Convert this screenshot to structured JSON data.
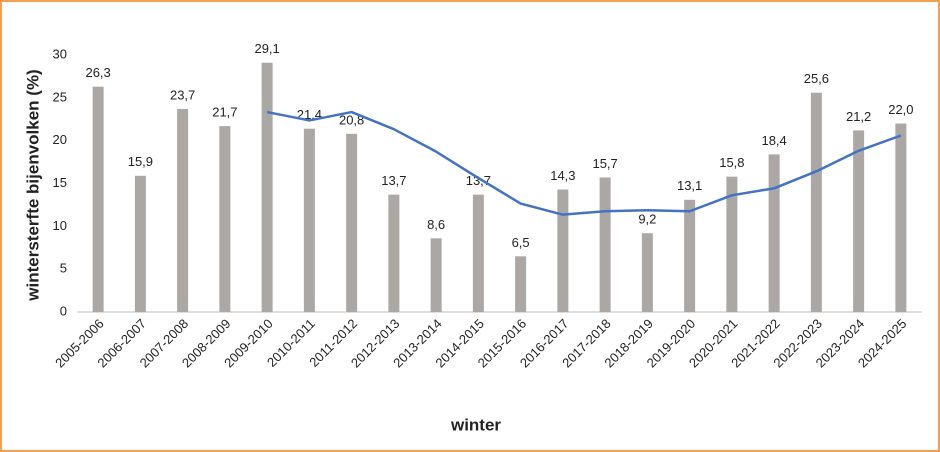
{
  "chart_data": {
    "type": "bar",
    "x_label": "winter",
    "y_label": "wintersterfte bijenvolken (%)",
    "categories": [
      "2005-2006",
      "2006-2007",
      "2007-2008",
      "2008-2009",
      "2009-2010",
      "2010-2011",
      "2011-2012",
      "2012-2013",
      "2013-2014",
      "2014-2015",
      "2015-2016",
      "2016-2017",
      "2017-2018",
      "2018-2019",
      "2019-2020",
      "2020-2021",
      "2021-2022",
      "2022-2023",
      "2023-2024",
      "2024-2025"
    ],
    "series": [
      {
        "type": "bar",
        "color": "#aba7a5",
        "values": [
          26.3,
          15.9,
          23.7,
          21.7,
          29.1,
          21.4,
          20.8,
          13.7,
          8.6,
          13.7,
          6.5,
          14.3,
          15.7,
          9.2,
          13.1,
          15.8,
          18.4,
          25.6,
          21.2,
          22.0
        ],
        "value_labels": [
          "26,3",
          "15,9",
          "23,7",
          "21,7",
          "29,1",
          "21,4",
          "20,8",
          "13,7",
          "8,6",
          "13,7",
          "6,5",
          "14,3",
          "15,7",
          "9,2",
          "13,1",
          "15,8",
          "18,4",
          "25,6",
          "21,2",
          "22,0"
        ]
      },
      {
        "type": "line",
        "color": "#4472c4",
        "values": [
          null,
          null,
          null,
          null,
          23.34,
          22.36,
          23.34,
          21.34,
          18.72,
          15.64,
          12.66,
          11.36,
          11.76,
          11.88,
          11.76,
          13.62,
          14.44,
          16.42,
          18.82,
          20.6
        ]
      }
    ],
    "ylim": [
      0,
      30
    ],
    "yticks": [
      0,
      5,
      10,
      15,
      20,
      25,
      30
    ],
    "grid": false
  }
}
